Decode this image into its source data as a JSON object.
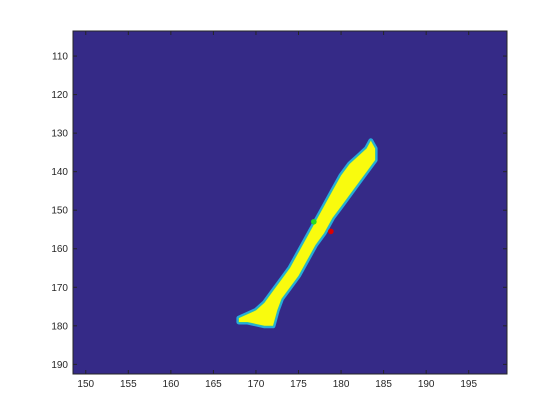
{
  "chart_data": {
    "type": "heatmap",
    "title": "",
    "xlabel": "",
    "ylabel": "",
    "xlim": [
      148.5,
      199.5
    ],
    "ylim": [
      192.5,
      103.5
    ],
    "y_axis_direction": "reversed",
    "x_ticks": [
      150,
      155,
      160,
      165,
      170,
      175,
      180,
      185,
      190,
      195
    ],
    "y_ticks": [
      110,
      120,
      130,
      140,
      150,
      160,
      170,
      180,
      190
    ],
    "grid": false,
    "colormap": "parula",
    "colors": {
      "background": "#352a87",
      "region": "#f9fb0e",
      "edge_light": "#26a9e0",
      "edge_dark": "#1c6bd6",
      "edge_teal": "#2fbcb0",
      "point_green": "#22dd22",
      "point_red": "#dd0000"
    },
    "region": {
      "description": "bright elongated blob on dark background",
      "polygon": [
        [
          168,
          178
        ],
        [
          170,
          176
        ],
        [
          171,
          174
        ],
        [
          172,
          171
        ],
        [
          173,
          168
        ],
        [
          174,
          165
        ],
        [
          175,
          161
        ],
        [
          176,
          157
        ],
        [
          177,
          153
        ],
        [
          178,
          149
        ],
        [
          179,
          145
        ],
        [
          180,
          141
        ],
        [
          181,
          138
        ],
        [
          182,
          136
        ],
        [
          183,
          134
        ],
        [
          183.5,
          132
        ],
        [
          184,
          134
        ],
        [
          184,
          137
        ],
        [
          183,
          140
        ],
        [
          182,
          143
        ],
        [
          181,
          146
        ],
        [
          180,
          149
        ],
        [
          179,
          152
        ],
        [
          178,
          156
        ],
        [
          177,
          159
        ],
        [
          176,
          163
        ],
        [
          175,
          167
        ],
        [
          174,
          170
        ],
        [
          173,
          173
        ],
        [
          172.5,
          176
        ],
        [
          172,
          180
        ],
        [
          171,
          180
        ],
        [
          169,
          179
        ],
        [
          168,
          179
        ]
      ]
    },
    "points": [
      {
        "name": "green-point",
        "x": 176.8,
        "y": 153,
        "color": "#22dd22"
      },
      {
        "name": "red-point",
        "x": 178.8,
        "y": 155.5,
        "color": "#dd0000"
      }
    ]
  }
}
